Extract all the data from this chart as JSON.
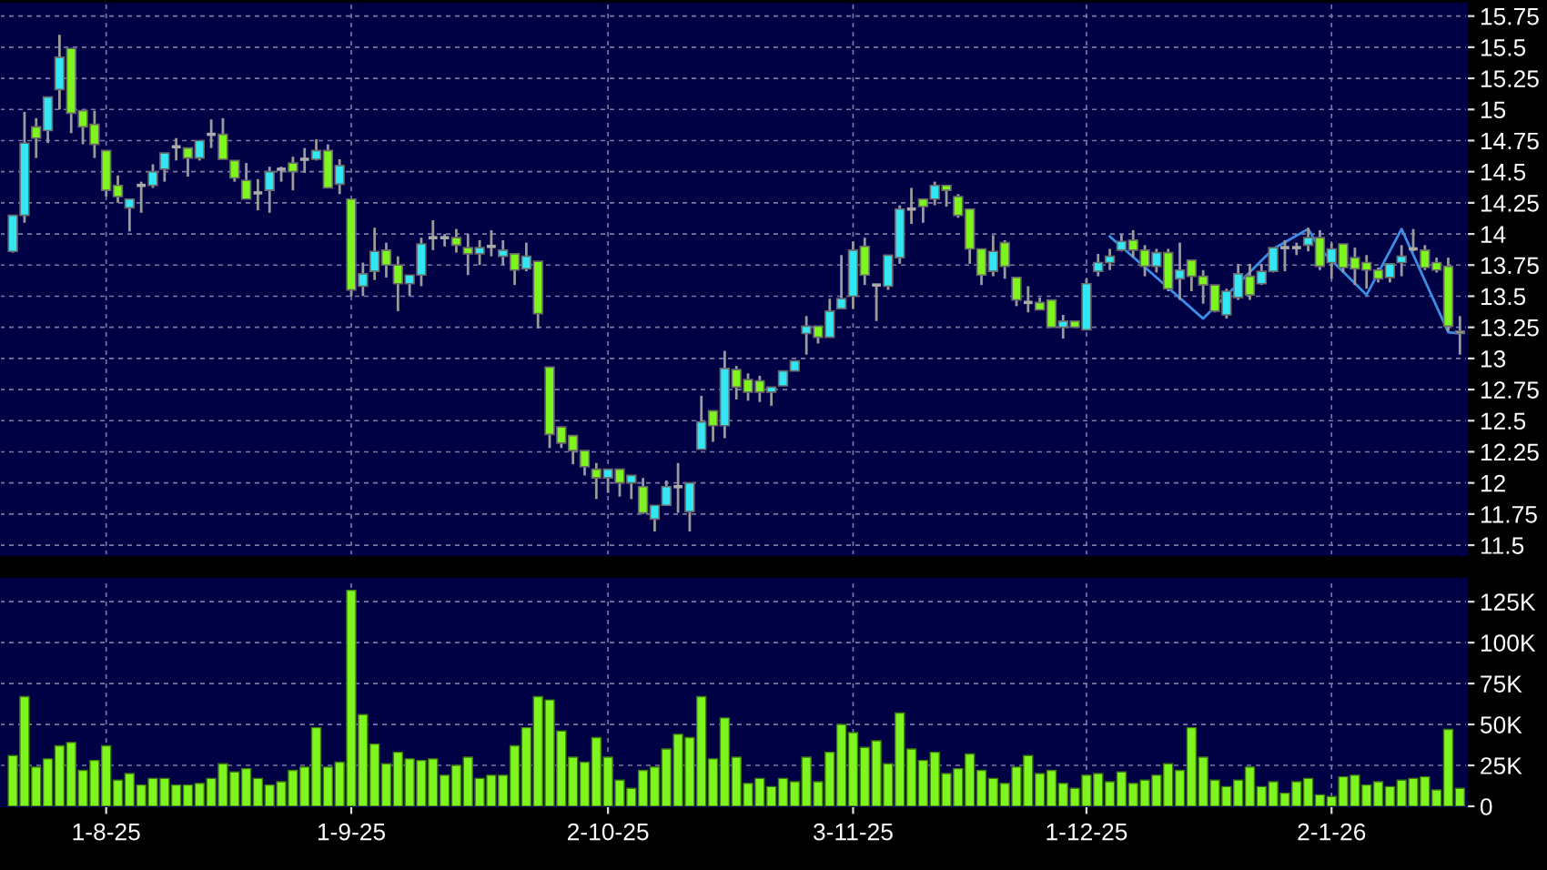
{
  "chart_data": [
    {
      "type": "candlestick",
      "categories": [
        null,
        null,
        null,
        null,
        null,
        null,
        null,
        null,
        null,
        null,
        null,
        null,
        null,
        null,
        null,
        null,
        null,
        null,
        null,
        null,
        null,
        null,
        null,
        null,
        null,
        null,
        null,
        null,
        null,
        null,
        null,
        null,
        null,
        null,
        null,
        null,
        null,
        null,
        null,
        null,
        null,
        null,
        null,
        null,
        null,
        null,
        null,
        null,
        null,
        null,
        null,
        null,
        null,
        null,
        null,
        null,
        null,
        null,
        null,
        null,
        null,
        null,
        null,
        null,
        null,
        null,
        null,
        null,
        null,
        null,
        null,
        null,
        null,
        null,
        null,
        null,
        null,
        null,
        null,
        null,
        null,
        null,
        null,
        null,
        null,
        null,
        null,
        null,
        null,
        null,
        null,
        null,
        null,
        null,
        null,
        null,
        null,
        null,
        null,
        null,
        null,
        null,
        null,
        null,
        null,
        null,
        null,
        null,
        null,
        null,
        null,
        null,
        null,
        null,
        null,
        null,
        null,
        null,
        null,
        null,
        null,
        null,
        null,
        null,
        null
      ],
      "ohlc": [
        [
          13.86,
          14.15,
          13.85,
          14.15
        ],
        [
          14.15,
          14.98,
          14.09,
          14.73
        ],
        [
          14.86,
          14.93,
          14.61,
          14.77
        ],
        [
          14.83,
          15.1,
          14.73,
          15.1
        ],
        [
          15.16,
          15.6,
          15.0,
          15.42
        ],
        [
          15.49,
          15.49,
          14.81,
          14.97
        ],
        [
          14.99,
          14.99,
          14.72,
          14.86
        ],
        [
          14.88,
          14.99,
          14.61,
          14.72
        ],
        [
          14.67,
          14.67,
          14.3,
          14.35
        ],
        [
          14.39,
          14.47,
          14.25,
          14.3
        ],
        [
          14.21,
          14.28,
          14.02,
          14.28
        ],
        [
          14.39,
          14.42,
          14.17,
          14.39
        ],
        [
          14.39,
          14.56,
          14.37,
          14.5
        ],
        [
          14.52,
          14.65,
          14.42,
          14.65
        ],
        [
          14.7,
          14.77,
          14.59,
          14.7
        ],
        [
          14.69,
          14.69,
          14.46,
          14.61
        ],
        [
          14.61,
          14.75,
          14.59,
          14.75
        ],
        [
          14.8,
          14.92,
          14.69,
          14.8
        ],
        [
          14.8,
          14.93,
          14.6,
          14.6
        ],
        [
          14.59,
          14.59,
          14.42,
          14.45
        ],
        [
          14.43,
          14.57,
          14.28,
          14.28
        ],
        [
          14.33,
          14.44,
          14.19,
          14.33
        ],
        [
          14.35,
          14.54,
          14.17,
          14.5
        ],
        [
          14.52,
          14.54,
          14.42,
          14.52
        ],
        [
          14.57,
          14.62,
          14.35,
          14.5
        ],
        [
          14.6,
          14.69,
          14.49,
          14.6
        ],
        [
          14.6,
          14.76,
          14.59,
          14.67
        ],
        [
          14.67,
          14.72,
          14.37,
          14.37
        ],
        [
          14.4,
          14.6,
          14.32,
          14.55
        ],
        [
          14.28,
          14.28,
          13.5,
          13.55
        ],
        [
          13.58,
          13.77,
          13.5,
          13.68
        ],
        [
          13.7,
          14.05,
          13.63,
          13.86
        ],
        [
          13.87,
          13.93,
          13.65,
          13.75
        ],
        [
          13.75,
          13.82,
          13.38,
          13.6
        ],
        [
          13.6,
          13.67,
          13.5,
          13.67
        ],
        [
          13.67,
          13.97,
          13.58,
          13.92
        ],
        [
          13.97,
          14.11,
          13.87,
          13.97
        ],
        [
          13.97,
          14.0,
          13.9,
          13.97
        ],
        [
          13.97,
          14.04,
          13.85,
          13.91
        ],
        [
          13.89,
          14.0,
          13.67,
          13.84
        ],
        [
          13.84,
          13.95,
          13.75,
          13.89
        ],
        [
          13.9,
          14.03,
          13.82,
          13.9
        ],
        [
          13.82,
          13.95,
          13.75,
          13.87
        ],
        [
          13.84,
          13.84,
          13.59,
          13.71
        ],
        [
          13.72,
          13.93,
          13.7,
          13.82
        ],
        [
          13.78,
          13.78,
          13.24,
          13.36
        ],
        [
          12.93,
          12.93,
          12.28,
          12.39
        ],
        [
          12.45,
          12.45,
          12.28,
          12.32
        ],
        [
          12.38,
          12.38,
          12.15,
          12.26
        ],
        [
          12.26,
          12.26,
          12.06,
          12.13
        ],
        [
          12.11,
          12.16,
          11.87,
          12.04
        ],
        [
          12.04,
          12.11,
          11.92,
          12.11
        ],
        [
          12.11,
          12.11,
          11.89,
          12.0
        ],
        [
          12.0,
          12.06,
          11.87,
          12.06
        ],
        [
          11.97,
          12.04,
          11.75,
          11.76
        ],
        [
          11.71,
          11.82,
          11.61,
          11.82
        ],
        [
          11.82,
          12.02,
          11.82,
          11.97
        ],
        [
          11.97,
          12.16,
          11.76,
          11.97
        ],
        [
          11.77,
          12.0,
          11.61,
          12.0
        ],
        [
          12.27,
          12.7,
          12.27,
          12.49
        ],
        [
          12.58,
          12.58,
          12.33,
          12.46
        ],
        [
          12.46,
          13.06,
          12.36,
          12.92
        ],
        [
          12.91,
          12.94,
          12.67,
          12.77
        ],
        [
          12.83,
          12.88,
          12.66,
          12.73
        ],
        [
          12.82,
          12.86,
          12.65,
          12.73
        ],
        [
          12.73,
          12.77,
          12.62,
          12.77
        ],
        [
          12.78,
          12.9,
          12.78,
          12.9
        ],
        [
          12.9,
          12.98,
          12.9,
          12.98
        ],
        [
          13.2,
          13.34,
          13.03,
          13.26
        ],
        [
          13.26,
          13.26,
          13.12,
          13.17
        ],
        [
          13.17,
          13.48,
          13.17,
          13.38
        ],
        [
          13.4,
          13.83,
          13.4,
          13.48
        ],
        [
          13.5,
          13.94,
          13.4,
          13.87
        ],
        [
          13.9,
          13.97,
          13.59,
          13.67
        ],
        [
          13.59,
          13.59,
          13.3,
          13.59
        ],
        [
          13.58,
          13.83,
          13.55,
          13.83
        ],
        [
          13.81,
          14.23,
          13.76,
          14.2
        ],
        [
          14.2,
          14.37,
          14.08,
          14.2
        ],
        [
          14.28,
          14.28,
          14.09,
          14.22
        ],
        [
          14.28,
          14.42,
          14.23,
          14.39
        ],
        [
          14.39,
          14.39,
          14.22,
          14.35
        ],
        [
          14.3,
          14.32,
          14.13,
          14.15
        ],
        [
          14.2,
          14.2,
          13.76,
          13.88
        ],
        [
          13.88,
          13.88,
          13.59,
          13.67
        ],
        [
          13.7,
          13.99,
          13.66,
          13.86
        ],
        [
          13.93,
          13.95,
          13.64,
          13.74
        ],
        [
          13.65,
          13.65,
          13.42,
          13.47
        ],
        [
          13.45,
          13.58,
          13.37,
          13.45
        ],
        [
          13.45,
          13.49,
          13.39,
          13.39
        ],
        [
          13.47,
          13.47,
          13.25,
          13.25
        ],
        [
          13.25,
          13.35,
          13.16,
          13.3
        ],
        [
          13.3,
          13.3,
          13.25,
          13.25
        ],
        [
          13.23,
          13.64,
          13.23,
          13.6
        ],
        [
          13.7,
          13.84,
          13.66,
          13.77
        ],
        [
          13.77,
          13.88,
          13.71,
          13.82
        ],
        [
          13.87,
          14.0,
          13.86,
          13.94
        ],
        [
          13.95,
          14.03,
          13.81,
          13.87
        ],
        [
          13.87,
          13.91,
          13.66,
          13.74
        ],
        [
          13.74,
          13.88,
          13.69,
          13.85
        ],
        [
          13.85,
          13.88,
          13.54,
          13.56
        ],
        [
          13.64,
          13.93,
          13.47,
          13.71
        ],
        [
          13.79,
          13.79,
          13.54,
          13.66
        ],
        [
          13.66,
          13.71,
          13.44,
          13.59
        ],
        [
          13.59,
          13.59,
          13.37,
          13.38
        ],
        [
          13.35,
          13.56,
          13.32,
          13.54
        ],
        [
          13.49,
          13.76,
          13.47,
          13.68
        ],
        [
          13.66,
          13.76,
          13.47,
          13.51
        ],
        [
          13.6,
          13.76,
          13.59,
          13.7
        ],
        [
          13.7,
          13.89,
          13.69,
          13.89
        ],
        [
          13.89,
          13.95,
          13.7,
          13.89
        ],
        [
          13.89,
          13.93,
          13.83,
          13.89
        ],
        [
          13.91,
          14.05,
          13.86,
          13.97
        ],
        [
          13.97,
          14.03,
          13.71,
          13.74
        ],
        [
          13.77,
          13.93,
          13.64,
          13.88
        ],
        [
          13.92,
          13.92,
          13.69,
          13.73
        ],
        [
          13.81,
          13.89,
          13.59,
          13.72
        ],
        [
          13.77,
          13.83,
          13.56,
          13.71
        ],
        [
          13.71,
          13.73,
          13.61,
          13.64
        ],
        [
          13.65,
          13.76,
          13.61,
          13.76
        ],
        [
          13.77,
          13.91,
          13.66,
          13.82
        ],
        [
          13.88,
          14.04,
          13.86,
          13.88
        ],
        [
          13.87,
          13.91,
          13.71,
          13.73
        ],
        [
          13.77,
          13.81,
          13.69,
          13.71
        ],
        [
          13.74,
          13.81,
          13.22,
          13.26
        ],
        [
          13.22,
          13.34,
          13.03,
          13.2
        ]
      ],
      "colors": [
        "#33e6f5",
        "#33e6f5",
        "#7ef51e",
        "#33e6f5",
        "#33e6f5",
        "#7ef51e",
        "#7ef51e",
        "#7ef51e",
        "#7ef51e",
        "#7ef51e",
        "#33e6f5",
        "#aaaaaa",
        "#33e6f5",
        "#33e6f5",
        "#aaaaaa",
        "#7ef51e",
        "#33e6f5",
        "#aaaaaa",
        "#7ef51e",
        "#7ef51e",
        "#7ef51e",
        "#aaaaaa",
        "#33e6f5",
        "#aaaaaa",
        "#7ef51e",
        "#aaaaaa",
        "#33e6f5",
        "#7ef51e",
        "#33e6f5",
        "#7ef51e",
        "#33e6f5",
        "#33e6f5",
        "#7ef51e",
        "#7ef51e",
        "#33e6f5",
        "#33e6f5",
        "#aaaaaa",
        "#aaaaaa",
        "#7ef51e",
        "#7ef51e",
        "#33e6f5",
        "#aaaaaa",
        "#33e6f5",
        "#7ef51e",
        "#33e6f5",
        "#7ef51e",
        "#7ef51e",
        "#7ef51e",
        "#7ef51e",
        "#7ef51e",
        "#7ef51e",
        "#33e6f5",
        "#7ef51e",
        "#33e6f5",
        "#7ef51e",
        "#33e6f5",
        "#33e6f5",
        "#aaaaaa",
        "#33e6f5",
        "#33e6f5",
        "#7ef51e",
        "#33e6f5",
        "#7ef51e",
        "#7ef51e",
        "#7ef51e",
        "#33e6f5",
        "#33e6f5",
        "#33e6f5",
        "#33e6f5",
        "#7ef51e",
        "#33e6f5",
        "#33e6f5",
        "#33e6f5",
        "#7ef51e",
        "#aaaaaa",
        "#33e6f5",
        "#33e6f5",
        "#aaaaaa",
        "#7ef51e",
        "#33e6f5",
        "#7ef51e",
        "#7ef51e",
        "#7ef51e",
        "#7ef51e",
        "#33e6f5",
        "#7ef51e",
        "#7ef51e",
        "#aaaaaa",
        "#7ef51e",
        "#7ef51e",
        "#33e6f5",
        "#7ef51e",
        "#33e6f5",
        "#33e6f5",
        "#33e6f5",
        "#33e6f5",
        "#7ef51e",
        "#7ef51e",
        "#33e6f5",
        "#7ef51e",
        "#33e6f5",
        "#7ef51e",
        "#7ef51e",
        "#7ef51e",
        "#33e6f5",
        "#33e6f5",
        "#7ef51e",
        "#33e6f5",
        "#33e6f5",
        "#aaaaaa",
        "#aaaaaa",
        "#33e6f5",
        "#7ef51e",
        "#33e6f5",
        "#7ef51e",
        "#7ef51e",
        "#7ef51e",
        "#7ef51e",
        "#33e6f5",
        "#33e6f5",
        "#aaaaaa",
        "#7ef51e",
        "#7ef51e",
        "#7ef51e",
        "#aaaaaa"
      ],
      "series": [
        {
          "type": "line",
          "color": "#3a8ee6",
          "values": [
            null,
            null,
            null,
            null,
            null,
            null,
            null,
            null,
            null,
            null,
            null,
            null,
            null,
            null,
            null,
            null,
            null,
            null,
            null,
            null,
            null,
            null,
            null,
            null,
            null,
            null,
            null,
            null,
            null,
            null,
            null,
            null,
            null,
            null,
            null,
            null,
            null,
            null,
            null,
            null,
            null,
            null,
            null,
            null,
            null,
            null,
            null,
            null,
            null,
            null,
            null,
            null,
            null,
            null,
            null,
            null,
            null,
            null,
            null,
            null,
            null,
            null,
            null,
            null,
            null,
            null,
            null,
            null,
            null,
            null,
            null,
            null,
            null,
            null,
            null,
            null,
            null,
            null,
            null,
            null,
            null,
            null,
            null,
            null,
            null,
            null,
            null,
            null,
            null,
            null,
            null,
            null,
            null,
            null,
            13.98,
            null,
            null,
            null,
            null,
            null,
            null,
            null,
            13.32,
            null,
            null,
            null,
            null,
            null,
            13.88,
            null,
            null,
            14.04,
            13.88,
            null,
            null,
            null,
            13.51,
            null,
            null,
            14.04,
            null,
            null,
            null,
            13.21,
            13.2
          ]
        }
      ],
      "ylim": [
        11.42,
        15.85
      ],
      "yticks": [
        11.5,
        11.75,
        12,
        12.25,
        12.5,
        12.75,
        13,
        13.25,
        13.5,
        13.75,
        14,
        14.25,
        14.5,
        14.75,
        15,
        15.25,
        15.5,
        15.75
      ],
      "grid": true,
      "tick_labels": "y"
    },
    {
      "type": "bar",
      "color": "#7ef51e",
      "categories": [
        null,
        null,
        null,
        null,
        null,
        null,
        null,
        null,
        "1-8-25",
        null,
        null,
        null,
        null,
        null,
        null,
        null,
        null,
        null,
        null,
        null,
        null,
        null,
        null,
        null,
        null,
        null,
        null,
        null,
        null,
        "1-9-25",
        null,
        null,
        null,
        null,
        null,
        null,
        null,
        null,
        null,
        null,
        null,
        null,
        null,
        null,
        null,
        null,
        null,
        null,
        null,
        null,
        null,
        "2-10-25",
        null,
        null,
        null,
        null,
        null,
        null,
        null,
        null,
        null,
        null,
        null,
        null,
        null,
        null,
        null,
        null,
        null,
        null,
        null,
        null,
        "3-11-25",
        null,
        null,
        null,
        null,
        null,
        null,
        null,
        null,
        null,
        null,
        null,
        null,
        null,
        null,
        null,
        null,
        null,
        null,
        null,
        "1-12-25",
        null,
        null,
        null,
        null,
        null,
        null,
        null,
        null,
        null,
        null,
        null,
        null,
        null,
        null,
        null,
        null,
        null,
        null,
        null,
        null,
        "2-1-26",
        null,
        null,
        null,
        null,
        null,
        null,
        null,
        null,
        null,
        null,
        null
      ],
      "values": [
        31000,
        67000,
        24000,
        29000,
        37000,
        39000,
        22000,
        28000,
        37000,
        16000,
        20000,
        13000,
        17000,
        17000,
        13000,
        13000,
        14000,
        17000,
        26000,
        21000,
        23000,
        17000,
        13000,
        15000,
        22000,
        24000,
        48000,
        24000,
        27000,
        132000,
        56000,
        38000,
        26000,
        33000,
        29000,
        28000,
        29000,
        19000,
        25000,
        30000,
        17000,
        19000,
        19000,
        37000,
        48000,
        67000,
        65000,
        46000,
        30000,
        27000,
        42000,
        30000,
        16000,
        11000,
        22000,
        24000,
        35000,
        44000,
        42000,
        67000,
        29000,
        54000,
        30000,
        14000,
        17000,
        12000,
        17000,
        15000,
        30000,
        15000,
        33000,
        50000,
        45000,
        36000,
        40000,
        26000,
        57000,
        35000,
        28000,
        33000,
        20000,
        23000,
        32000,
        22000,
        17000,
        14000,
        24000,
        31000,
        20000,
        22000,
        14000,
        11000,
        19000,
        20000,
        15000,
        21000,
        14000,
        16000,
        19000,
        26000,
        22000,
        48000,
        30000,
        16000,
        12000,
        16000,
        24000,
        12000,
        15000,
        8000,
        15000,
        17000,
        7000,
        6000,
        18000,
        19000,
        13000,
        15000,
        12000,
        16000,
        17000,
        18000,
        10000,
        47000,
        11000
      ],
      "ylim": [
        0,
        139000
      ],
      "yticks": [
        0,
        {
          "value": 25000,
          "label": "25K"
        },
        {
          "value": 50000,
          "label": "50K"
        },
        {
          "value": 75000,
          "label": "75K"
        },
        {
          "value": 100000,
          "label": "100K"
        },
        {
          "value": 125000,
          "label": "125K"
        }
      ],
      "grid": true
    }
  ]
}
